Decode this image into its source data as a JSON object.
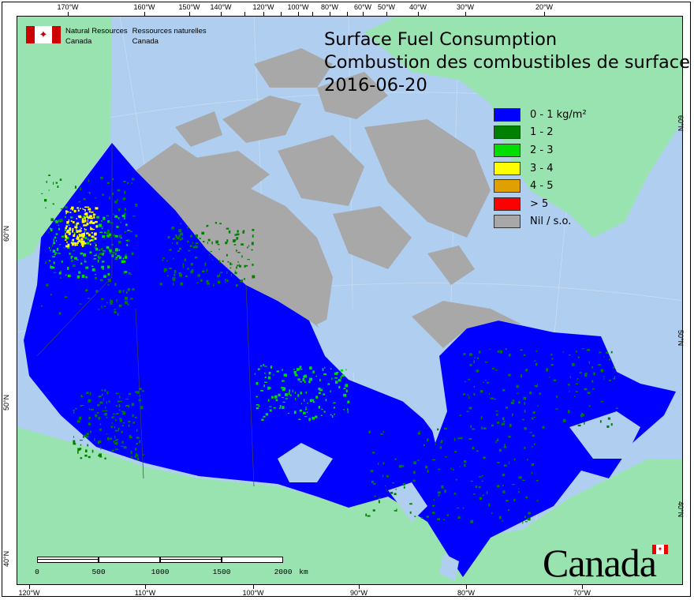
{
  "title": {
    "line1": "Surface Fuel Consumption",
    "line2": "Combustion des combustibles de surface",
    "date": "2016-06-20"
  },
  "agency": {
    "en1": "Natural Resources",
    "en2": "Canada",
    "fr1": "Ressources naturelles",
    "fr2": "Canada"
  },
  "wordmark": "Canada",
  "legend": [
    {
      "label": "0 - 1 kg/m²",
      "color": "#0000ff"
    },
    {
      "label": "1 - 2",
      "color": "#008000"
    },
    {
      "label": "2 - 3",
      "color": "#00dd00"
    },
    {
      "label": "3 - 4",
      "color": "#ffff00"
    },
    {
      "label": "4 - 5",
      "color": "#e0a000"
    },
    {
      "label": "> 5",
      "color": "#ff0000"
    },
    {
      "label": "Nil / s.o.",
      "color": "#a8a8a8"
    }
  ],
  "axes": {
    "top": [
      "170°W",
      "160°W",
      "150°W",
      "140°W",
      "120°W",
      "100°W",
      "80°W",
      "60°W",
      "50°W",
      "40°W",
      "30°W",
      "20°W"
    ],
    "bottom": [
      "120°W",
      "110°W",
      "100°W",
      "90°W",
      "80°W",
      "70°W"
    ],
    "left": [
      "60°N",
      "50°N",
      "40°N"
    ],
    "right": [
      "60°N",
      "50°N",
      "40°N"
    ]
  },
  "scale_bar": {
    "labels": [
      "0",
      "500",
      "1000",
      "1500",
      "2000"
    ],
    "unit": "km"
  },
  "colors": {
    "water": "#b0cff0",
    "land_other": "#98e3b0",
    "nil": "#a8a8a8"
  }
}
